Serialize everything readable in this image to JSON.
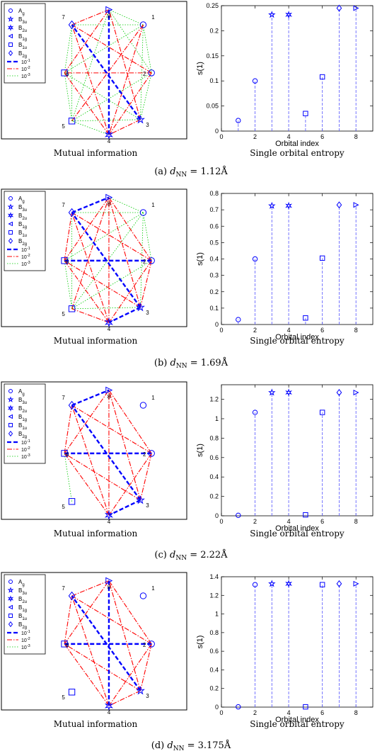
{
  "colors": {
    "blue": "#0000ff",
    "red": "#ff0000",
    "green": "#00cc00",
    "stem_blue": "#6666ff",
    "frame": "#000000"
  },
  "legend_orbitals": [
    {
      "label": "A",
      "sub": "g",
      "marker": "circle"
    },
    {
      "label": "B",
      "sub": "3u",
      "marker": "star5"
    },
    {
      "label": "B",
      "sub": "2u",
      "marker": "star6"
    },
    {
      "label": "B",
      "sub": "1g",
      "marker": "tri-left"
    },
    {
      "label": "B",
      "sub": "1u",
      "marker": "square"
    },
    {
      "label": "B",
      "sub": "2g",
      "marker": "diamond"
    }
  ],
  "legend_lines": [
    {
      "label": "10",
      "sup": "-1",
      "style": "strong"
    },
    {
      "label": "10",
      "sup": "-2",
      "style": "medium"
    },
    {
      "label": "10",
      "sup": "-3",
      "style": "weak"
    }
  ],
  "node_labels": [
    "1",
    "2",
    "3",
    "4",
    "5",
    "6",
    "7",
    "8"
  ],
  "node_markers": [
    "circle",
    "circle",
    "star5",
    "star6",
    "square",
    "square",
    "diamond",
    "tri-right"
  ],
  "captions": {
    "left": "Mutual information",
    "right": "Single orbital entropy"
  },
  "chart_data": [
    {
      "type": "scatter",
      "subtitle_prefix": "(a)",
      "subtitle_value": "= 1.12Å",
      "ylabel": "s(1)",
      "xlabel": "Orbital index",
      "xlim": [
        0,
        9
      ],
      "xticks": [
        0,
        2,
        4,
        6,
        8
      ],
      "ylim": [
        0,
        0.25
      ],
      "yticks": [
        0,
        0.05,
        0.1,
        0.15,
        0.2,
        0.25
      ],
      "ytick_labels": [
        "0",
        "0.05",
        "0.1",
        "0.15",
        "0.2",
        "0.25"
      ],
      "x": [
        1,
        2,
        3,
        4,
        5,
        6,
        7,
        8
      ],
      "values": [
        0.021,
        0.1,
        0.232,
        0.232,
        0.035,
        0.108,
        0.245,
        0.245
      ],
      "mi_strong": [
        [
          3,
          7
        ],
        [
          4,
          8
        ]
      ],
      "mi_medium": [
        [
          2,
          6
        ],
        [
          3,
          8
        ],
        [
          4,
          7
        ],
        [
          7,
          8
        ],
        [
          3,
          4
        ],
        [
          4,
          6
        ],
        [
          2,
          4
        ],
        [
          6,
          8
        ],
        [
          2,
          7
        ],
        [
          1,
          4
        ],
        [
          1,
          5
        ]
      ],
      "mi_weak": [
        [
          1,
          8
        ],
        [
          1,
          7
        ],
        [
          1,
          2
        ],
        [
          1,
          3
        ],
        [
          1,
          6
        ],
        [
          2,
          8
        ],
        [
          2,
          3
        ],
        [
          6,
          7
        ],
        [
          5,
          6
        ],
        [
          5,
          7
        ],
        [
          5,
          8
        ],
        [
          3,
          6
        ],
        [
          3,
          5
        ],
        [
          2,
          5
        ],
        [
          4,
          5
        ]
      ]
    },
    {
      "type": "scatter",
      "subtitle_prefix": "(b)",
      "subtitle_value": "= 1.69Å",
      "ylabel": "s(1)",
      "xlabel": "Orbital index",
      "xlim": [
        0,
        9
      ],
      "xticks": [
        0,
        2,
        4,
        6,
        8
      ],
      "ylim": [
        0,
        0.8
      ],
      "yticks": [
        0,
        0.1,
        0.2,
        0.3,
        0.4,
        0.5,
        0.6,
        0.7,
        0.8
      ],
      "ytick_labels": [
        "0",
        "0.1",
        "0.2",
        "0.3",
        "0.4",
        "0.5",
        "0.6",
        "0.7",
        "0.8"
      ],
      "x": [
        1,
        2,
        3,
        4,
        5,
        6,
        7,
        8
      ],
      "values": [
        0.03,
        0.4,
        0.725,
        0.725,
        0.04,
        0.405,
        0.73,
        0.73
      ],
      "mi_strong": [
        [
          7,
          8
        ],
        [
          3,
          4
        ],
        [
          3,
          7
        ],
        [
          2,
          6
        ]
      ],
      "mi_medium": [
        [
          4,
          8
        ],
        [
          2,
          8
        ],
        [
          2,
          3
        ],
        [
          4,
          6
        ],
        [
          6,
          7
        ],
        [
          2,
          7
        ],
        [
          3,
          6
        ],
        [
          2,
          4
        ],
        [
          6,
          8
        ],
        [
          3,
          8
        ],
        [
          4,
          7
        ],
        [
          4,
          5
        ],
        [
          5,
          8
        ]
      ],
      "mi_weak": [
        [
          1,
          8
        ],
        [
          1,
          2
        ],
        [
          1,
          7
        ],
        [
          1,
          3
        ],
        [
          1,
          6
        ],
        [
          1,
          5
        ],
        [
          5,
          7
        ],
        [
          5,
          6
        ],
        [
          2,
          5
        ],
        [
          3,
          5
        ]
      ]
    },
    {
      "type": "scatter",
      "subtitle_prefix": "(c)",
      "subtitle_value": "= 2.22Å",
      "ylabel": "s(1)",
      "xlabel": "Orbital index",
      "xlim": [
        0,
        9
      ],
      "xticks": [
        0,
        2,
        4,
        6,
        8
      ],
      "ylim": [
        0,
        1.35
      ],
      "yticks": [
        0,
        0.2,
        0.4,
        0.6,
        0.8,
        1,
        1.2
      ],
      "ytick_labels": [
        "0",
        "0.2",
        "0.4",
        "0.6",
        "0.8",
        "1",
        "1.2"
      ],
      "x": [
        1,
        2,
        3,
        4,
        5,
        6,
        7,
        8
      ],
      "values": [
        0.005,
        1.065,
        1.27,
        1.27,
        0.01,
        1.065,
        1.27,
        1.27
      ],
      "mi_strong": [
        [
          7,
          8
        ],
        [
          3,
          4
        ],
        [
          3,
          7
        ],
        [
          2,
          6
        ]
      ],
      "mi_medium": [
        [
          4,
          8
        ],
        [
          2,
          8
        ],
        [
          2,
          3
        ],
        [
          4,
          6
        ],
        [
          6,
          7
        ],
        [
          2,
          7
        ],
        [
          3,
          6
        ],
        [
          2,
          4
        ],
        [
          6,
          8
        ],
        [
          3,
          8
        ],
        [
          4,
          7
        ]
      ],
      "mi_weak": [
        [
          5,
          6
        ]
      ]
    },
    {
      "type": "scatter",
      "subtitle_prefix": "(d)",
      "subtitle_value": "= 3.175Å",
      "ylabel": "s(1)",
      "xlabel": "Orbital index",
      "xlim": [
        0,
        9
      ],
      "xticks": [
        0,
        2,
        4,
        6,
        8
      ],
      "ylim": [
        0,
        1.4
      ],
      "yticks": [
        0,
        0.2,
        0.4,
        0.6,
        0.8,
        1,
        1.2,
        1.4
      ],
      "ytick_labels": [
        "0",
        "0.2",
        "0.4",
        "0.6",
        "0.8",
        "1",
        "1.2",
        "1.4"
      ],
      "x": [
        1,
        2,
        3,
        4,
        5,
        6,
        7,
        8
      ],
      "values": [
        0.003,
        1.315,
        1.325,
        1.325,
        0.003,
        1.315,
        1.325,
        1.325
      ],
      "mi_strong": [
        [
          3,
          7
        ],
        [
          2,
          6
        ],
        [
          4,
          8
        ]
      ],
      "mi_medium": [
        [
          7,
          8
        ],
        [
          3,
          4
        ],
        [
          4,
          6
        ],
        [
          2,
          8
        ],
        [
          2,
          3
        ],
        [
          6,
          7
        ],
        [
          2,
          7
        ],
        [
          3,
          6
        ],
        [
          2,
          4
        ],
        [
          6,
          8
        ],
        [
          3,
          8
        ],
        [
          4,
          7
        ]
      ],
      "mi_weak": []
    }
  ]
}
